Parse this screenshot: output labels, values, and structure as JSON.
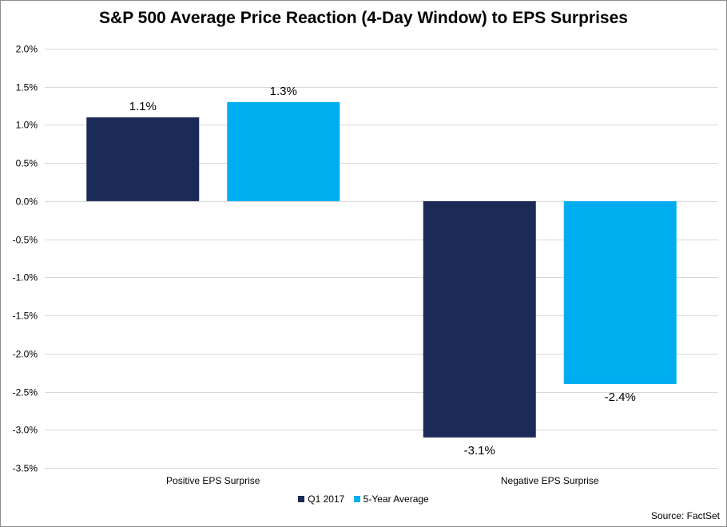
{
  "chart_data": {
    "type": "bar",
    "title": "S&P 500 Average Price Reaction (4-Day Window) to EPS Surprises",
    "categories": [
      "Positive EPS Surprise",
      "Negative EPS Surprise"
    ],
    "series": [
      {
        "name": "Q1 2017",
        "color": "#1b2a57",
        "values": [
          1.1,
          -3.1
        ],
        "labels": [
          "1.1%",
          "-3.1%"
        ]
      },
      {
        "name": "5-Year Average",
        "color": "#00aeef",
        "values": [
          1.3,
          -2.4
        ],
        "labels": [
          "1.3%",
          "-2.4%"
        ]
      }
    ],
    "ylim": [
      -3.5,
      2.0
    ],
    "yticks": [
      2.0,
      1.5,
      1.0,
      0.5,
      0.0,
      -0.5,
      -1.0,
      -1.5,
      -2.0,
      -2.5,
      -3.0,
      -3.5
    ],
    "ytick_labels": [
      "2.0%",
      "1.5%",
      "1.0%",
      "0.5%",
      "0.0%",
      "-0.5%",
      "-1.0%",
      "-1.5%",
      "-2.0%",
      "-2.5%",
      "-3.0%",
      "-3.5%"
    ],
    "xlabel": "",
    "ylabel": "",
    "grid": true,
    "legend_position": "bottom",
    "source": "Source: FactSet"
  }
}
